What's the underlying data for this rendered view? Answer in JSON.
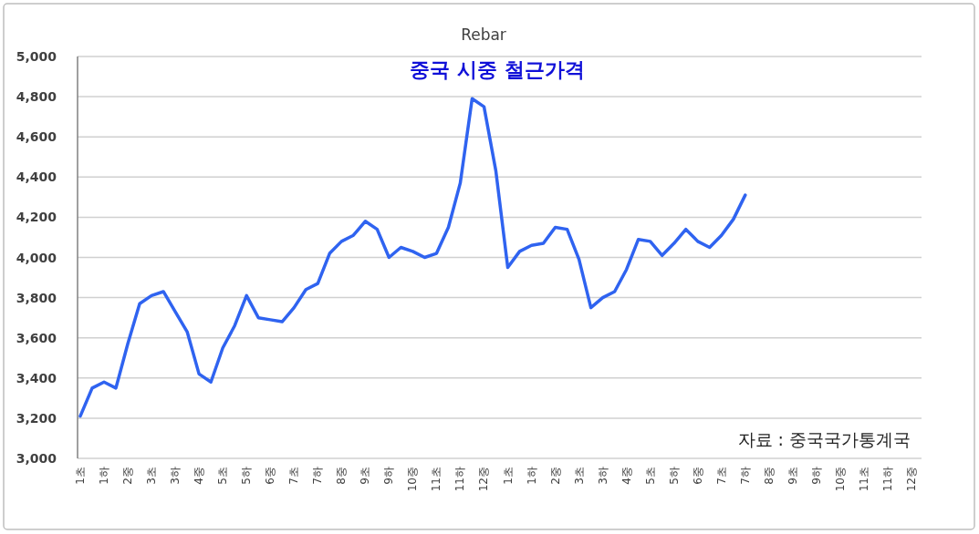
{
  "chart_data": {
    "type": "line",
    "title": "Rebar",
    "subtitle": "중국 시중 철근가격",
    "annotations": [
      "자료 : 중국국가통계국"
    ],
    "categories": [
      "1초",
      null,
      "1하",
      null,
      "2중",
      null,
      "3초",
      null,
      "3하",
      null,
      "4중",
      null,
      "5초",
      null,
      "5하",
      null,
      "6중",
      null,
      "7초",
      null,
      "7하",
      null,
      "8중",
      null,
      "9초",
      null,
      "9하",
      null,
      "10중",
      null,
      "11초",
      null,
      "11하",
      null,
      "12중",
      null,
      "1초",
      null,
      "1하",
      null,
      "2중",
      null,
      "3초",
      null,
      "3하",
      null,
      "4중",
      null,
      "5초",
      null,
      "5하",
      null,
      "6중",
      null,
      "7초",
      null,
      "7하",
      null,
      "8중",
      null,
      "9초",
      null,
      "9하",
      null,
      "10중",
      null,
      "11초",
      null,
      "11하",
      null,
      "12중",
      null
    ],
    "series": [
      {
        "color": "#2f63f0",
        "values": [
          3210,
          3350,
          3380,
          3350,
          3570,
          3770,
          3810,
          3830,
          3730,
          3630,
          3420,
          3380,
          3550,
          3660,
          3810,
          3700,
          3690,
          3680,
          3750,
          3840,
          3870,
          4020,
          4080,
          4110,
          4180,
          4140,
          4000,
          4050,
          4030,
          4000,
          4020,
          4150,
          4370,
          4790,
          4750,
          4430,
          3950,
          4030,
          4060,
          4070,
          4150,
          4140,
          3990,
          3750,
          3800,
          3830,
          3940,
          4090,
          4080,
          4010,
          4070,
          4140,
          4080,
          4050,
          4110,
          4190,
          4310,
          null,
          null,
          null,
          null,
          null,
          null,
          null,
          null,
          null,
          null,
          null,
          null,
          null,
          null,
          null
        ]
      }
    ],
    "ylim": [
      3000,
      5000
    ],
    "yticks": [
      {
        "value": 3000,
        "label": "3,000"
      },
      {
        "value": 3200,
        "label": "3,200"
      },
      {
        "value": 3400,
        "label": "3,400"
      },
      {
        "value": 3600,
        "label": "3,600"
      },
      {
        "value": 3800,
        "label": "3,800"
      },
      {
        "value": 4000,
        "label": "4,000"
      },
      {
        "value": 4200,
        "label": "4,200"
      },
      {
        "value": 4400,
        "label": "4,400"
      },
      {
        "value": 4600,
        "label": "4,600"
      },
      {
        "value": 4800,
        "label": "4,800"
      },
      {
        "value": 5000,
        "label": "5,000"
      }
    ],
    "grid": "y"
  }
}
